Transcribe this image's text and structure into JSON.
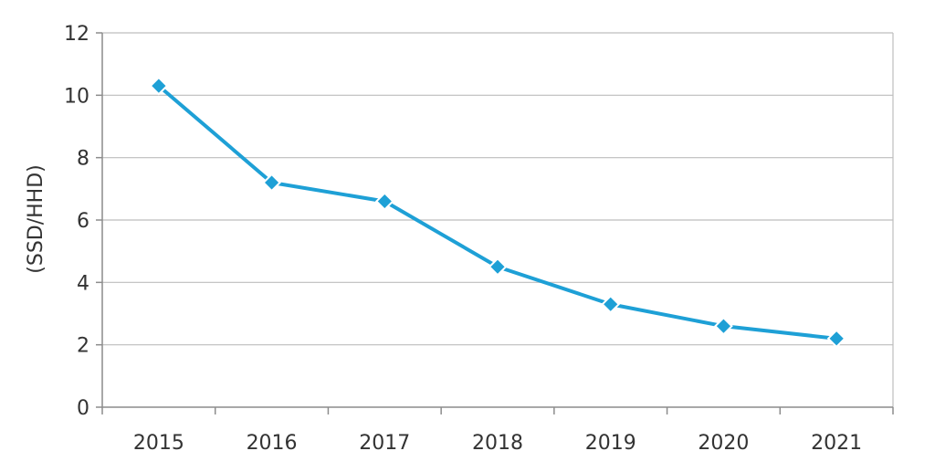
{
  "chart_data": {
    "type": "line",
    "title": "",
    "xlabel": "",
    "ylabel": "(SSD/HHD)",
    "categories": [
      "2015",
      "2016",
      "2017",
      "2018",
      "2019",
      "2020",
      "2021"
    ],
    "series": [
      {
        "values": [
          10.3,
          7.2,
          6.6,
          4.5,
          3.3,
          2.6,
          2.2
        ],
        "color": "#1ea0d6",
        "marker": "diamond"
      }
    ],
    "ylim": [
      0,
      12
    ],
    "yticks": [
      0,
      2,
      4,
      6,
      8,
      10,
      12
    ],
    "grid": "horizontal",
    "gridColor": "#bdbdbd",
    "axisColor": "#8c8c8c",
    "legend": "none"
  }
}
